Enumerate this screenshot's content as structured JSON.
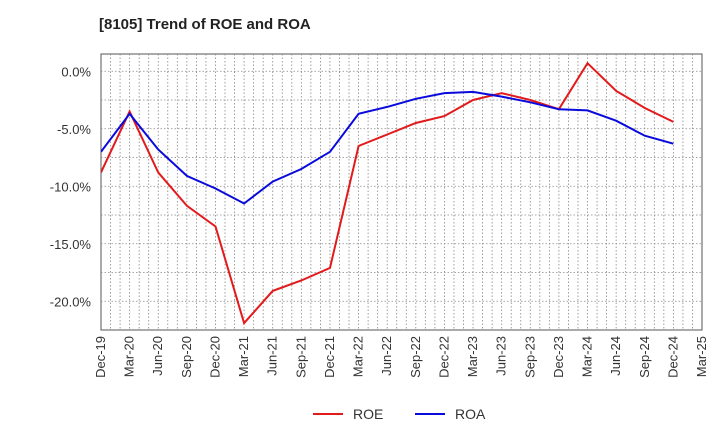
{
  "chart_data": {
    "type": "line",
    "title": "[8105]  Trend of ROE and ROA",
    "xlabel": "",
    "ylabel": "",
    "categories": [
      "Dec-19",
      "Mar-20",
      "Jun-20",
      "Sep-20",
      "Dec-20",
      "Mar-21",
      "Jun-21",
      "Sep-21",
      "Dec-21",
      "Mar-22",
      "Jun-22",
      "Sep-22",
      "Dec-22",
      "Mar-23",
      "Jun-23",
      "Sep-23",
      "Dec-23",
      "Mar-24",
      "Jun-24",
      "Sep-24",
      "Dec-24",
      "Mar-25"
    ],
    "y_ticks": [
      "0.0%",
      "-5.0%",
      "-10.0%",
      "-15.0%",
      "-20.0%"
    ],
    "y_tick_values": [
      0,
      -5,
      -10,
      -15,
      -20
    ],
    "ylim": [
      -22.5,
      1.5
    ],
    "grid": true,
    "legend_position": "bottom-center",
    "series": [
      {
        "name": "ROE",
        "color": "#e31a1c",
        "values": [
          -8.8,
          -3.5,
          -8.8,
          -11.7,
          -13.5,
          -21.9,
          -19.1,
          -18.2,
          -17.1,
          -6.5,
          -5.5,
          -4.5,
          -3.9,
          -2.5,
          -1.9,
          -2.5,
          -3.3,
          0.7,
          -1.7,
          -3.2,
          -4.4,
          null
        ]
      },
      {
        "name": "ROA",
        "color": "#0a0adc",
        "values": [
          -7.0,
          -3.7,
          -6.8,
          -9.1,
          -10.2,
          -11.5,
          -9.6,
          -8.5,
          -7.0,
          -3.7,
          -3.1,
          -2.4,
          -1.9,
          -1.8,
          -2.2,
          -2.7,
          -3.3,
          -3.4,
          -4.3,
          -5.6,
          -6.3,
          null
        ]
      }
    ]
  }
}
